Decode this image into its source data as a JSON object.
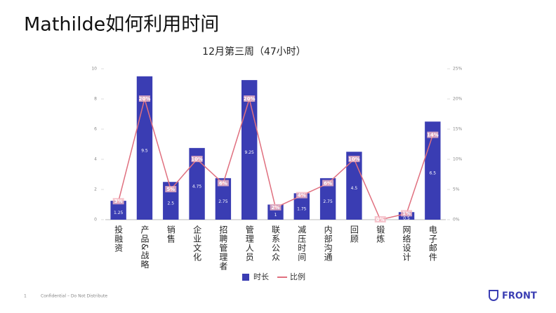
{
  "title": "Mathilde如何利用时间",
  "footer": {
    "page": "1",
    "note": "Confidential – Do Not Distribute",
    "brand": "FRONT"
  },
  "chart_data": {
    "type": "bar",
    "title": "12月第三周（47小时）",
    "categories": [
      "投融资",
      "产品&战略",
      "销售",
      "企业文化",
      "招聘管理者",
      "管理人员",
      "联系公众",
      "减压时间",
      "内部沟通",
      "回顾",
      "锻炼",
      "网络设计",
      "电子邮件"
    ],
    "series": [
      {
        "name": "时长",
        "type": "bar",
        "color": "#3a3db3",
        "values": [
          1.25,
          9.5,
          2.5,
          4.75,
          2.75,
          9.25,
          1,
          1.75,
          2.75,
          4.5,
          0,
          0.5,
          6.5
        ]
      },
      {
        "name": "比例",
        "type": "line",
        "axis": "y2",
        "color": "#e0707f",
        "values": [
          3,
          20,
          5,
          10,
          6,
          20,
          2,
          4,
          6,
          10,
          0,
          1,
          14
        ],
        "value_labels": [
          "3%",
          "20%",
          "5%",
          "10%",
          "6%",
          "20%",
          "2%",
          "4%",
          "6%",
          "10%",
          "0%",
          "1%",
          "14%"
        ]
      }
    ],
    "ylim": [
      0,
      10
    ],
    "yticks": [
      0,
      2,
      4,
      6,
      8,
      10
    ],
    "y2lim": [
      0,
      25
    ],
    "y2ticks": [
      {
        "value": 0,
        "label": "0%"
      },
      {
        "value": 5,
        "label": "5%"
      },
      {
        "value": 10,
        "label": "10%"
      },
      {
        "value": 15,
        "label": "15%"
      },
      {
        "value": 20,
        "label": "20%"
      },
      {
        "value": 25,
        "label": "25%"
      }
    ],
    "legend": "bottom"
  }
}
